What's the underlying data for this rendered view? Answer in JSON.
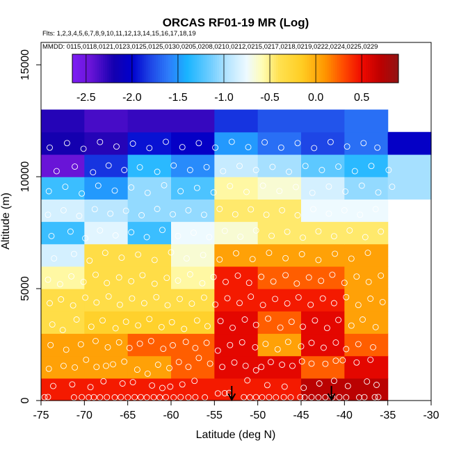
{
  "chart_data": {
    "type": "heatmap",
    "title": "ORCAS RF01-19 MR (Log)",
    "flights_label": "Flts: 1,2,3,4,5,6,7,8,9,10,11,12,13,14,15,16,17,18,19",
    "dates_label": "MMDD: 0115,0118,0121,0123,0125,0125,0130,0205,0208,0210,0212,0215,0217,0218,0219,0222,0224,0225,0229",
    "xlabel": "Latitude (deg N)",
    "ylabel": "Altitude (m)",
    "xlim": [
      -75,
      -30
    ],
    "ylim": [
      0,
      16000
    ],
    "x_ticks": [
      -75,
      -70,
      -65,
      -60,
      -55,
      -50,
      -45,
      -40,
      -35,
      -30
    ],
    "x_tick_labels": [
      "-75",
      "-70",
      "-65",
      "-60",
      "-55",
      "-50",
      "-45",
      "-40",
      "-35",
      "-30"
    ],
    "y_ticks": [
      0,
      5000,
      10000,
      15000
    ],
    "y_tick_labels": [
      "0",
      "5000",
      "10000",
      "15000"
    ],
    "colorbar": {
      "range": [
        -2.65,
        0.9
      ],
      "ticks": [
        -2.5,
        -2.0,
        -1.5,
        -1.0,
        -0.5,
        0.0,
        0.5
      ],
      "tick_labels": [
        "-2.5",
        "-2.0",
        "-1.5",
        "-1.0",
        "-0.5",
        "0.0",
        "0.5"
      ]
    },
    "x_bin_edges": [
      -75,
      -70,
      -65,
      -60,
      -55,
      -50,
      -45,
      -40,
      -35,
      -30
    ],
    "y_bin_size": 1000,
    "grid_rows_from_bottom": [
      [
        0.45,
        0.45,
        0.45,
        0.45,
        0.45,
        0.45,
        0.72,
        0.72,
        null
      ],
      [
        0.05,
        0.05,
        0.05,
        0.25,
        0.55,
        0.55,
        0.25,
        0.55,
        null
      ],
      [
        0.05,
        0.05,
        0.25,
        0.25,
        0.55,
        0.05,
        0.55,
        0.25,
        null
      ],
      [
        -0.35,
        -0.2,
        -0.2,
        -0.2,
        0.55,
        0.25,
        0.55,
        0.05,
        null
      ],
      [
        -0.35,
        -0.35,
        -0.35,
        -0.35,
        0.45,
        0.45,
        0.45,
        0.05,
        null
      ],
      [
        -0.55,
        -0.35,
        -0.35,
        -0.55,
        0.45,
        0.25,
        0.25,
        0.05,
        null
      ],
      [
        -0.85,
        -0.35,
        -0.35,
        -0.65,
        0.05,
        0.05,
        0.05,
        0.05,
        null
      ],
      [
        -1.3,
        -0.8,
        -1.3,
        -0.75,
        -0.65,
        -0.45,
        -0.45,
        -0.45,
        null
      ],
      [
        -0.85,
        -0.95,
        -1.05,
        -1.05,
        -0.45,
        -0.45,
        -0.75,
        -0.75,
        null
      ],
      [
        -1.3,
        -1.5,
        -1.05,
        -1.25,
        -0.55,
        -0.65,
        -0.85,
        -1.05,
        -1.0
      ],
      [
        -2.45,
        -1.85,
        -1.35,
        -1.55,
        -0.9,
        -1.0,
        -1.2,
        -1.35,
        -1.0
      ],
      [
        -2.2,
        -2.25,
        -1.95,
        -2.05,
        -1.5,
        -1.65,
        -1.8,
        -1.65,
        -2.05
      ],
      [
        -2.25,
        -2.35,
        -2.3,
        -2.3,
        -1.85,
        -1.75,
        -1.75,
        -1.65,
        null
      ]
    ],
    "markers": [
      {
        "type": "arrow",
        "x": -53,
        "label": ""
      },
      {
        "type": "arrow",
        "x": -41.5,
        "label": ""
      }
    ],
    "observations": [
      [
        -74.6,
        150
      ],
      [
        -74.2,
        160
      ],
      [
        -71.2,
        140
      ],
      [
        -70.3,
        150
      ],
      [
        -69.5,
        140
      ],
      [
        -68.9,
        150
      ],
      [
        -68.2,
        140
      ],
      [
        -67.4,
        150
      ],
      [
        -66.5,
        140
      ],
      [
        -65.8,
        150
      ],
      [
        -65.0,
        140
      ],
      [
        -64.2,
        150
      ],
      [
        -63.5,
        150
      ],
      [
        -62.8,
        140
      ],
      [
        -62.0,
        150
      ],
      [
        -61.3,
        140
      ],
      [
        -60.6,
        150
      ],
      [
        -59.7,
        140
      ],
      [
        -58.9,
        150
      ],
      [
        -58.0,
        140
      ],
      [
        -57.2,
        150
      ],
      [
        -56.1,
        140
      ],
      [
        -54.6,
        320
      ],
      [
        -53.8,
        330
      ],
      [
        -53.3,
        340
      ],
      [
        -51.6,
        150
      ],
      [
        -50.9,
        140
      ],
      [
        -50.2,
        150
      ],
      [
        -49.5,
        140
      ],
      [
        -48.7,
        150
      ],
      [
        -47.9,
        140
      ],
      [
        -47.0,
        150
      ],
      [
        -46.2,
        140
      ],
      [
        -45.1,
        150
      ],
      [
        -44.6,
        140
      ],
      [
        -43.8,
        150
      ],
      [
        -43.0,
        140
      ],
      [
        -42.2,
        150
      ],
      [
        -41.4,
        140
      ],
      [
        -40.6,
        150
      ],
      [
        -39.8,
        140
      ],
      [
        -38.3,
        140
      ],
      [
        -37.7,
        150
      ],
      [
        -36.5,
        150
      ],
      [
        -36.1,
        160
      ],
      [
        -73.6,
        650
      ],
      [
        -71.4,
        720
      ],
      [
        -69.3,
        600
      ],
      [
        -67.8,
        860
      ],
      [
        -65.6,
        760
      ],
      [
        -64.4,
        820
      ],
      [
        -62.2,
        670
      ],
      [
        -61.0,
        560
      ],
      [
        -60.1,
        620
      ],
      [
        -58.7,
        720
      ],
      [
        -57.3,
        880
      ],
      [
        -51.2,
        900
      ],
      [
        -48.9,
        690
      ],
      [
        -46.9,
        620
      ],
      [
        -44.7,
        570
      ],
      [
        -42.9,
        760
      ],
      [
        -41.2,
        880
      ],
      [
        -39.6,
        650
      ],
      [
        -37.4,
        850
      ],
      [
        -36.3,
        700
      ],
      [
        -74.1,
        1420
      ],
      [
        -72.4,
        1550
      ],
      [
        -71.1,
        1480
      ],
      [
        -69.8,
        1820
      ],
      [
        -68.6,
        1500
      ],
      [
        -67.5,
        1550
      ],
      [
        -66.7,
        1620
      ],
      [
        -65.4,
        1740
      ],
      [
        -63.9,
        1380
      ],
      [
        -62.7,
        1200
      ],
      [
        -61.5,
        1600
      ],
      [
        -60.2,
        1450
      ],
      [
        -59.1,
        1720
      ],
      [
        -58.0,
        1500
      ],
      [
        -56.8,
        1900
      ],
      [
        -55.5,
        1650
      ],
      [
        -54.1,
        1500
      ],
      [
        -52.7,
        1700
      ],
      [
        -51.4,
        1550
      ],
      [
        -50.2,
        1350
      ],
      [
        -49.6,
        1500
      ],
      [
        -48.5,
        1720
      ],
      [
        -47.2,
        1600
      ],
      [
        -46.0,
        1550
      ],
      [
        -44.9,
        1750
      ],
      [
        -43.8,
        1650
      ],
      [
        -42.2,
        1640
      ],
      [
        -41.0,
        1780
      ],
      [
        -40.2,
        1800
      ],
      [
        -38.6,
        1700
      ],
      [
        -37.0,
        1820
      ],
      [
        -73.9,
        2480
      ],
      [
        -72.1,
        2270
      ],
      [
        -70.4,
        2510
      ],
      [
        -68.7,
        2660
      ],
      [
        -67.3,
        2380
      ],
      [
        -66.0,
        2600
      ],
      [
        -64.8,
        2350
      ],
      [
        -63.6,
        2540
      ],
      [
        -62.3,
        2660
      ],
      [
        -60.9,
        2310
      ],
      [
        -59.8,
        2470
      ],
      [
        -58.3,
        2620
      ],
      [
        -57.2,
        2350
      ],
      [
        -55.9,
        2580
      ],
      [
        -54.6,
        2230
      ],
      [
        -53.2,
        2480
      ],
      [
        -51.8,
        2600
      ],
      [
        -50.3,
        2380
      ],
      [
        -49.1,
        2530
      ],
      [
        -47.7,
        2290
      ],
      [
        -46.5,
        2620
      ],
      [
        -45.0,
        2420
      ],
      [
        -43.8,
        2580
      ],
      [
        -42.4,
        2360
      ],
      [
        -41.0,
        2590
      ],
      [
        -39.8,
        2300
      ],
      [
        -38.4,
        2520
      ],
      [
        -36.7,
        2380
      ],
      [
        -73.7,
        3400
      ],
      [
        -72.5,
        3150
      ],
      [
        -70.9,
        3620
      ],
      [
        -69.2,
        3300
      ],
      [
        -67.9,
        3580
      ],
      [
        -66.4,
        3230
      ],
      [
        -65.2,
        3520
      ],
      [
        -63.8,
        3360
      ],
      [
        -62.5,
        3640
      ],
      [
        -61.1,
        3280
      ],
      [
        -59.9,
        3500
      ],
      [
        -58.5,
        3200
      ],
      [
        -57.0,
        3580
      ],
      [
        -55.8,
        3320
      ],
      [
        -54.3,
        3550
      ],
      [
        -52.9,
        3250
      ],
      [
        -51.5,
        3620
      ],
      [
        -50.2,
        3380
      ],
      [
        -48.8,
        3660
      ],
      [
        -47.4,
        3260
      ],
      [
        -46.1,
        3520
      ],
      [
        -44.8,
        3300
      ],
      [
        -43.4,
        3580
      ],
      [
        -42.0,
        3240
      ],
      [
        -40.7,
        3600
      ],
      [
        -39.2,
        3350
      ],
      [
        -37.9,
        3620
      ],
      [
        -36.4,
        3280
      ],
      [
        -74.0,
        4350
      ],
      [
        -72.7,
        4520
      ],
      [
        -71.3,
        4250
      ],
      [
        -69.9,
        4600
      ],
      [
        -68.6,
        4380
      ],
      [
        -67.2,
        4650
      ],
      [
        -65.9,
        4280
      ],
      [
        -64.5,
        4560
      ],
      [
        -63.1,
        4350
      ],
      [
        -61.7,
        4620
      ],
      [
        -60.4,
        4260
      ],
      [
        -59.0,
        4540
      ],
      [
        -57.6,
        4330
      ],
      [
        -56.2,
        4600
      ],
      [
        -54.9,
        4290
      ],
      [
        -53.5,
        4570
      ],
      [
        -52.1,
        4360
      ],
      [
        -50.8,
        4640
      ],
      [
        -49.4,
        4270
      ],
      [
        -48.0,
        4540
      ],
      [
        -46.6,
        4340
      ],
      [
        -45.3,
        4610
      ],
      [
        -43.9,
        4280
      ],
      [
        -42.5,
        4560
      ],
      [
        -41.2,
        4350
      ],
      [
        -39.8,
        4620
      ],
      [
        -38.4,
        4270
      ],
      [
        -37.0,
        4550
      ],
      [
        -35.6,
        4400
      ],
      [
        -74.2,
        5400
      ],
      [
        -72.8,
        5200
      ],
      [
        -71.5,
        5550
      ],
      [
        -70.1,
        5300
      ],
      [
        -68.7,
        5620
      ],
      [
        -67.4,
        5250
      ],
      [
        -66.0,
        5500
      ],
      [
        -64.6,
        5330
      ],
      [
        -63.3,
        5600
      ],
      [
        -61.9,
        5220
      ],
      [
        -60.5,
        5480
      ],
      [
        -59.2,
        5360
      ],
      [
        -57.8,
        5640
      ],
      [
        -56.4,
        5240
      ],
      [
        -55.1,
        5520
      ],
      [
        -53.7,
        5300
      ],
      [
        -52.3,
        5580
      ],
      [
        -51.0,
        5260
      ],
      [
        -49.6,
        5530
      ],
      [
        -48.2,
        5320
      ],
      [
        -46.8,
        5600
      ],
      [
        -45.5,
        5230
      ],
      [
        -44.1,
        5500
      ],
      [
        -42.7,
        5350
      ],
      [
        -41.4,
        5620
      ],
      [
        -40.0,
        5260
      ],
      [
        -38.6,
        5540
      ],
      [
        -37.2,
        5300
      ],
      [
        -35.8,
        5580
      ],
      [
        -73.5,
        6350
      ],
      [
        -71.2,
        6550
      ],
      [
        -69.4,
        6250
      ],
      [
        -67.6,
        6600
      ],
      [
        -65.7,
        6380
      ],
      [
        -63.8,
        6520
      ],
      [
        -61.9,
        6280
      ],
      [
        -60.0,
        6620
      ],
      [
        -58.2,
        6350
      ],
      [
        -56.3,
        6500
      ],
      [
        -54.4,
        6300
      ],
      [
        -52.5,
        6580
      ],
      [
        -50.6,
        6320
      ],
      [
        -48.7,
        6600
      ],
      [
        -46.8,
        6360
      ],
      [
        -44.9,
        6540
      ],
      [
        -43.0,
        6280
      ],
      [
        -41.1,
        6560
      ],
      [
        -39.2,
        6340
      ],
      [
        -37.3,
        6600
      ],
      [
        -73.8,
        7350
      ],
      [
        -71.6,
        7550
      ],
      [
        -69.9,
        7250
      ],
      [
        -68.2,
        7600
      ],
      [
        -66.4,
        7380
      ],
      [
        -64.6,
        7520
      ],
      [
        -62.8,
        7300
      ],
      [
        -61.0,
        7620
      ],
      [
        -59.2,
        7350
      ],
      [
        -57.4,
        7500
      ],
      [
        -55.6,
        7300
      ],
      [
        -53.8,
        7580
      ],
      [
        -52.0,
        7320
      ],
      [
        -50.2,
        7600
      ],
      [
        -48.4,
        7360
      ],
      [
        -46.6,
        7540
      ],
      [
        -44.8,
        7280
      ],
      [
        -43.0,
        7560
      ],
      [
        -41.2,
        7340
      ],
      [
        -39.4,
        7600
      ],
      [
        -37.6,
        7300
      ],
      [
        -35.8,
        7550
      ],
      [
        -74.2,
        8300
      ],
      [
        -72.4,
        8500
      ],
      [
        -70.6,
        8250
      ],
      [
        -68.8,
        8550
      ],
      [
        -67.0,
        8350
      ],
      [
        -65.2,
        8480
      ],
      [
        -63.4,
        8280
      ],
      [
        -61.6,
        8560
      ],
      [
        -59.8,
        8320
      ],
      [
        -58.0,
        8500
      ],
      [
        -56.2,
        8300
      ],
      [
        -54.4,
        8560
      ],
      [
        -52.6,
        8320
      ],
      [
        -50.8,
        8540
      ],
      [
        -49.0,
        8300
      ],
      [
        -47.2,
        8500
      ],
      [
        -45.4,
        8280
      ],
      [
        -43.6,
        8550
      ],
      [
        -41.8,
        8350
      ],
      [
        -40.0,
        8500
      ],
      [
        -38.2,
        8300
      ],
      [
        -36.4,
        8550
      ],
      [
        -34.6,
        8300
      ],
      [
        -74.1,
        9350
      ],
      [
        -72.2,
        9550
      ],
      [
        -70.3,
        9250
      ],
      [
        -68.4,
        9600
      ],
      [
        -66.5,
        9380
      ],
      [
        -64.6,
        9520
      ],
      [
        -62.7,
        9280
      ],
      [
        -60.8,
        9620
      ],
      [
        -58.9,
        9350
      ],
      [
        -57.0,
        9500
      ],
      [
        -55.1,
        9300
      ],
      [
        -53.2,
        9580
      ],
      [
        -51.3,
        9320
      ],
      [
        -49.4,
        9600
      ],
      [
        -47.5,
        9360
      ],
      [
        -45.6,
        9540
      ],
      [
        -43.7,
        9280
      ],
      [
        -41.8,
        9560
      ],
      [
        -39.9,
        9340
      ],
      [
        -38.0,
        9600
      ],
      [
        -36.1,
        9300
      ],
      [
        -34.5,
        9550
      ],
      [
        -73.2,
        10250
      ],
      [
        -71.1,
        10450
      ],
      [
        -69.0,
        10200
      ],
      [
        -67.2,
        10500
      ],
      [
        -65.4,
        10300
      ],
      [
        -63.6,
        10420
      ],
      [
        -61.6,
        10220
      ],
      [
        -59.7,
        10500
      ],
      [
        -57.8,
        10300
      ],
      [
        -55.9,
        10430
      ],
      [
        -54.0,
        10250
      ],
      [
        -52.1,
        10480
      ],
      [
        -50.2,
        10300
      ],
      [
        -48.3,
        10440
      ],
      [
        -46.4,
        10220
      ],
      [
        -44.5,
        10480
      ],
      [
        -42.6,
        10300
      ],
      [
        -40.7,
        10450
      ],
      [
        -38.8,
        10250
      ],
      [
        -36.9,
        10480
      ],
      [
        -34.9,
        10300
      ],
      [
        -74.0,
        11300
      ],
      [
        -72.0,
        11500
      ],
      [
        -70.1,
        11250
      ],
      [
        -68.2,
        11550
      ],
      [
        -66.3,
        11350
      ],
      [
        -64.4,
        11480
      ],
      [
        -62.5,
        11280
      ],
      [
        -60.6,
        11560
      ],
      [
        -58.7,
        11320
      ],
      [
        -56.8,
        11500
      ],
      [
        -54.9,
        11300
      ],
      [
        -53.0,
        11560
      ],
      [
        -51.1,
        11320
      ],
      [
        -49.2,
        11540
      ],
      [
        -47.3,
        11300
      ],
      [
        -45.4,
        11500
      ],
      [
        -43.5,
        11280
      ],
      [
        -41.6,
        11550
      ],
      [
        -39.7,
        11350
      ],
      [
        -37.8,
        11500
      ],
      [
        -36.2,
        11300
      ]
    ]
  },
  "colors": {
    "background": "#ffffff",
    "marker_stroke": "#ffffff",
    "arrow": "#000000"
  }
}
